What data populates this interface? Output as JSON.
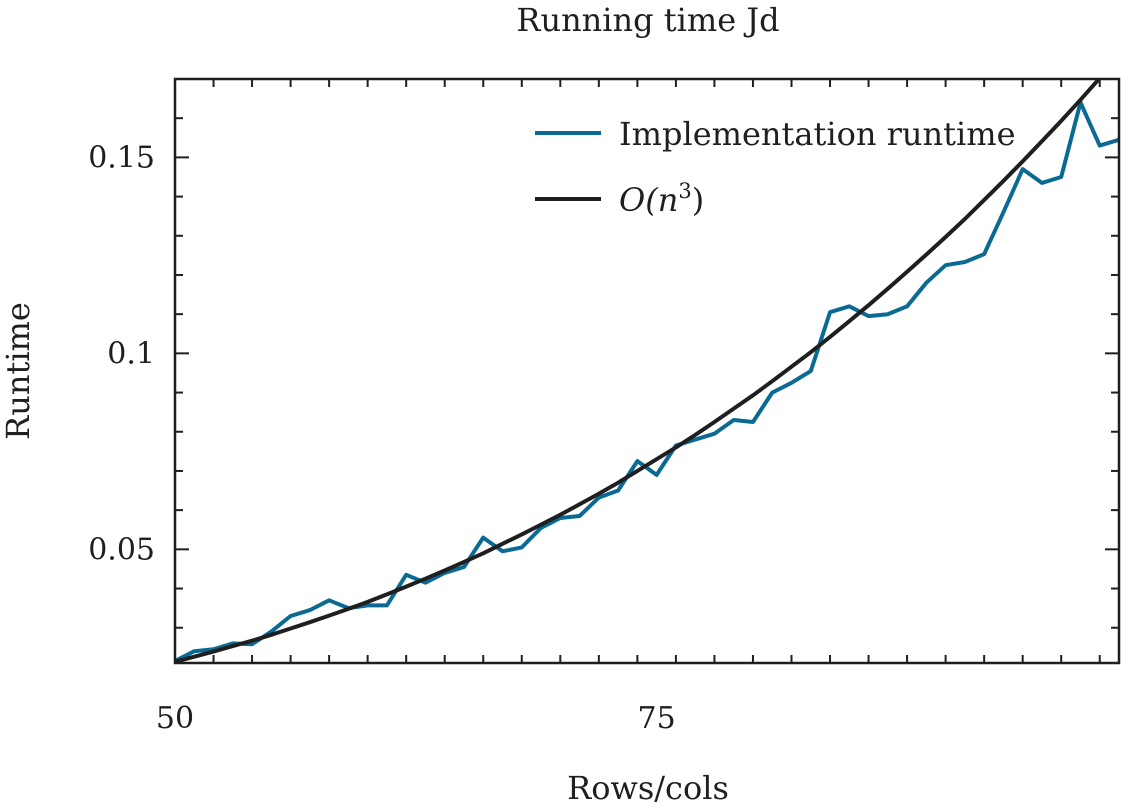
{
  "chart_data": {
    "type": "line",
    "title": "Running time Jd",
    "xlabel": "Rows/cols",
    "ylabel": "Runtime",
    "xlim": [
      50,
      99
    ],
    "ylim": [
      0.021,
      0.17
    ],
    "x_ticks": [
      50,
      75
    ],
    "x_tick_labels": [
      "50",
      "75"
    ],
    "y_ticks": [
      0.05,
      0.1,
      0.15
    ],
    "y_tick_labels": [
      "0.05",
      "0.1",
      "0.15"
    ],
    "legend_position": "top-right",
    "grid": false,
    "series": [
      {
        "name": "Implementation runtime",
        "color": "#0b6a94",
        "x": [
          50,
          51,
          52,
          53,
          54,
          55,
          56,
          57,
          58,
          59,
          60,
          61,
          62,
          63,
          64,
          65,
          66,
          67,
          68,
          69,
          70,
          71,
          72,
          73,
          74,
          75,
          76,
          77,
          78,
          79,
          80,
          81,
          82,
          83,
          84,
          85,
          86,
          87,
          88,
          89,
          90,
          91,
          92,
          93,
          94,
          95,
          96,
          97,
          98,
          99
        ],
        "y": [
          0.0215,
          0.024,
          0.0245,
          0.026,
          0.0258,
          0.029,
          0.033,
          0.0345,
          0.037,
          0.035,
          0.0357,
          0.0357,
          0.0435,
          0.0415,
          0.044,
          0.0455,
          0.053,
          0.0495,
          0.0505,
          0.0555,
          0.058,
          0.0585,
          0.0632,
          0.065,
          0.0725,
          0.069,
          0.0765,
          0.078,
          0.0795,
          0.083,
          0.0825,
          0.09,
          0.0925,
          0.0955,
          0.1105,
          0.112,
          0.1095,
          0.11,
          0.112,
          0.118,
          0.1225,
          0.1233,
          0.1253,
          0.136,
          0.147,
          0.1435,
          0.145,
          0.164,
          0.153,
          0.1545
        ]
      },
      {
        "name": "O(n",
        "name_sup": "3",
        "name_close": ")",
        "color": "#1f1f1f",
        "x": [
          50,
          51,
          52,
          53,
          54,
          55,
          56,
          57,
          58,
          59,
          60,
          61,
          62,
          63,
          64,
          65,
          66,
          67,
          68,
          69,
          70,
          71,
          72,
          73,
          74,
          75,
          76,
          77,
          78,
          79,
          80,
          81,
          82,
          83,
          84,
          85,
          86,
          87,
          88,
          89,
          90,
          91,
          92,
          93,
          94,
          95,
          96,
          97,
          98,
          99
        ],
        "y": [
          0.0213,
          0.0226,
          0.0239,
          0.0253,
          0.0267,
          0.0282,
          0.0298,
          0.0314,
          0.0331,
          0.0348,
          0.0366,
          0.0385,
          0.0405,
          0.0425,
          0.0446,
          0.0468,
          0.049,
          0.0514,
          0.0538,
          0.0563,
          0.0588,
          0.0615,
          0.0642,
          0.067,
          0.07,
          0.073,
          0.076,
          0.0792,
          0.0825,
          0.0859,
          0.0893,
          0.0929,
          0.0966,
          0.1003,
          0.1042,
          0.1082,
          0.1123,
          0.1165,
          0.1208,
          0.1252,
          0.1297,
          0.1343,
          0.1391,
          0.144,
          0.149,
          0.1541,
          0.1593,
          0.1647,
          0.1702,
          0.1758
        ]
      }
    ]
  }
}
